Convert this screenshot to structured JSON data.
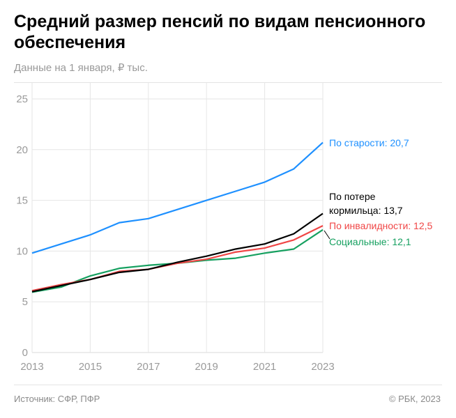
{
  "title": "Средний размер пенсий по видам пенсионного обеспечения",
  "subtitle": "Данные на 1 января, ₽ тыс.",
  "footer": {
    "source": "Источник: СФР, ПФР",
    "copyright": "© РБК, 2023"
  },
  "chart_data": {
    "type": "line",
    "title": "Средний размер пенсий по видам пенсионного обеспечения",
    "subtitle": "Данные на 1 января, ₽ тыс.",
    "x": [
      2013,
      2014,
      2015,
      2016,
      2017,
      2018,
      2019,
      2020,
      2021,
      2022,
      2023
    ],
    "x_ticks": [
      "2013",
      "2015",
      "2017",
      "2019",
      "2021",
      "2023"
    ],
    "y_ticks": [
      "0",
      "5",
      "10",
      "15",
      "20",
      "25"
    ],
    "ylim": [
      0,
      26
    ],
    "grid": true,
    "series": [
      {
        "name": "По старости",
        "end_label": "По старости: 20,7",
        "color": "#1e90ff",
        "values": [
          9.8,
          10.7,
          11.6,
          12.8,
          13.2,
          14.1,
          15.0,
          15.9,
          16.8,
          18.1,
          20.7
        ]
      },
      {
        "name": "По потере кормильца",
        "end_label_lines": [
          "По потере",
          "кормильца: 13,7"
        ],
        "color": "#000000",
        "values": [
          6.0,
          6.6,
          7.2,
          7.9,
          8.2,
          8.9,
          9.5,
          10.2,
          10.7,
          11.7,
          13.7
        ]
      },
      {
        "name": "По инвалидности",
        "end_label": "По инвалидности: 12,5",
        "color": "#f04646",
        "values": [
          6.1,
          6.7,
          7.2,
          8.0,
          8.2,
          8.8,
          9.2,
          9.9,
          10.3,
          11.1,
          12.5
        ]
      },
      {
        "name": "Социальные",
        "end_label": "Социальные: 12,1",
        "color": "#16a060",
        "values": [
          5.95,
          6.45,
          7.55,
          8.3,
          8.6,
          8.8,
          9.1,
          9.3,
          9.8,
          10.2,
          12.1
        ]
      }
    ]
  }
}
